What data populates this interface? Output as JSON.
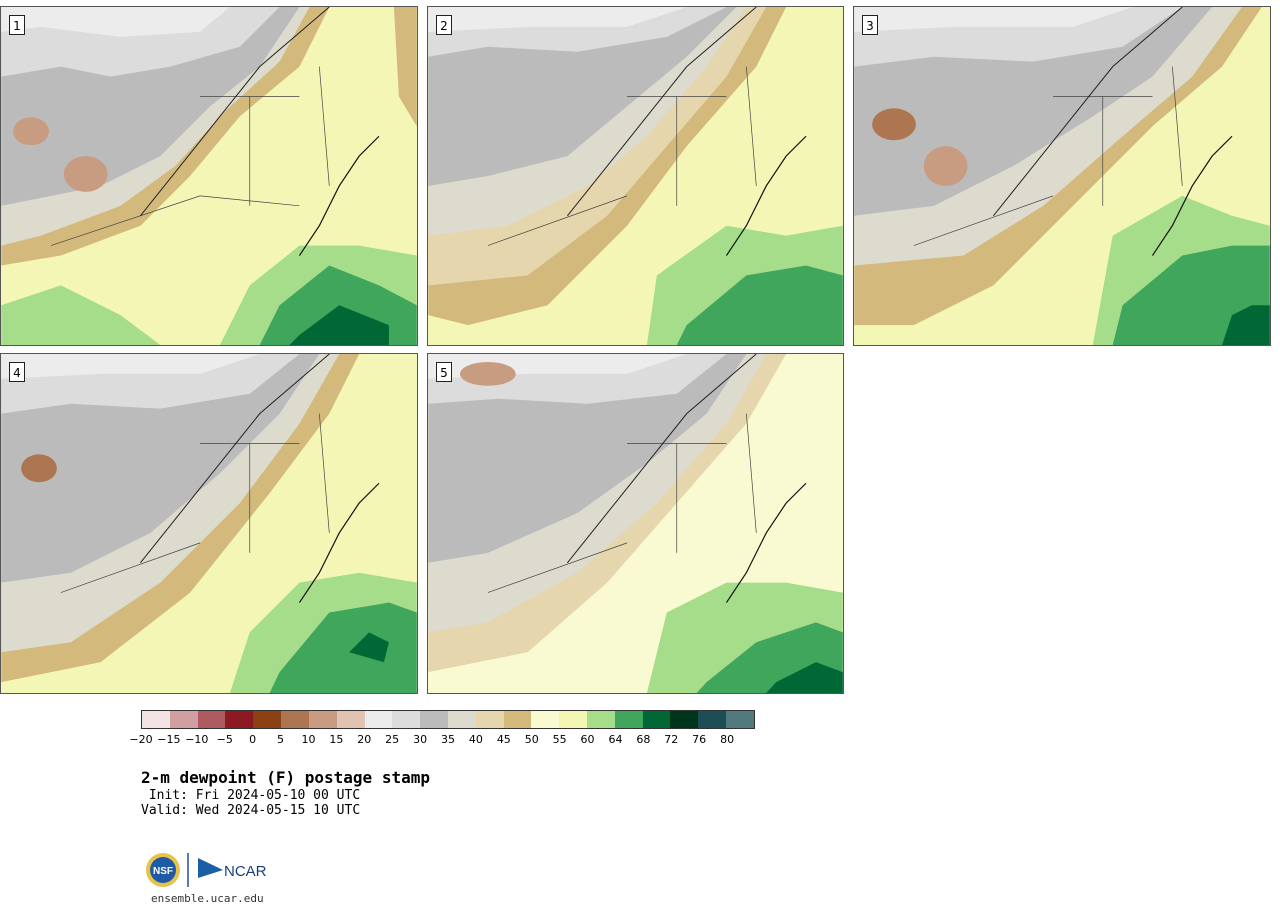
{
  "panels": [
    {
      "number": "1"
    },
    {
      "number": "2"
    },
    {
      "number": "3"
    },
    {
      "number": "4"
    },
    {
      "number": "5"
    }
  ],
  "colorbar": {
    "colors": [
      "#f2e4e4",
      "#d29ea2",
      "#ad5b60",
      "#8b1a22",
      "#8a4213",
      "#ae7551",
      "#c79c81",
      "#e0c4b1",
      "#ececec",
      "#dcdcdc",
      "#bbbbbb",
      "#dddbce",
      "#e5d6ad",
      "#d3ba7c",
      "#fafad2",
      "#f3f6b5",
      "#a6dd8a",
      "#40a65c",
      "#006834",
      "#00341b",
      "#1d4e55",
      "#507a7e"
    ],
    "ticks": [
      "−20",
      "−15",
      "−10",
      "−5",
      "0",
      "5",
      "10",
      "15",
      "20",
      "25",
      "30",
      "35",
      "40",
      "45",
      "50",
      "55",
      "60",
      "64",
      "68",
      "72",
      "76",
      "80"
    ]
  },
  "caption": {
    "title": "2-m dewpoint (F) postage stamp",
    "init": " Init: Fri 2024-05-10 00 UTC",
    "valid": "Valid: Wed 2024-05-15 10 UTC"
  },
  "logos": {
    "nsf": "NSF",
    "ncar": "NCAR"
  },
  "site_url": "ensemble.ucar.edu"
}
